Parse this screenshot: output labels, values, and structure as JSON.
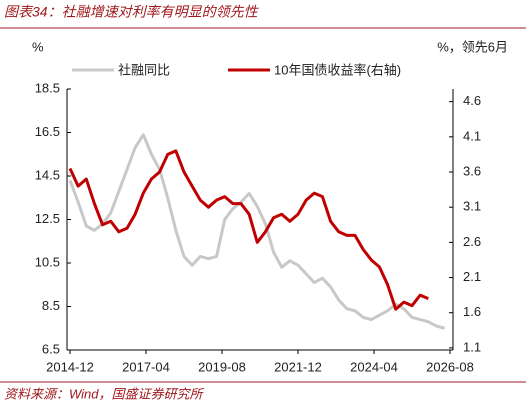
{
  "chart_data": {
    "type": "line",
    "title": "图表34：社融增速对利率有明显的领先性",
    "source": "资料来源：Wind，国盛证券研究所",
    "y_label": "%",
    "y2_label": "%，领先6月",
    "x": [
      "2014-12",
      "2015-03",
      "2015-06",
      "2015-09",
      "2015-12",
      "2016-03",
      "2016-06",
      "2016-09",
      "2016-12",
      "2017-03",
      "2017-06",
      "2017-09",
      "2017-12",
      "2018-03",
      "2018-06",
      "2018-09",
      "2018-12",
      "2019-03",
      "2019-06",
      "2019-09",
      "2019-12",
      "2020-03",
      "2020-06",
      "2020-09",
      "2020-12",
      "2021-03",
      "2021-06",
      "2021-09",
      "2021-12",
      "2022-03",
      "2022-06",
      "2022-09",
      "2022-12",
      "2023-03",
      "2023-06",
      "2023-09",
      "2023-12",
      "2024-03",
      "2024-06",
      "2024-09",
      "2024-12",
      "2025-03",
      "2025-06",
      "2025-09",
      "2025-12",
      "2026-03",
      "2026-06"
    ],
    "series": [
      {
        "name": "社融同比",
        "color": "#c8c8c8",
        "values": [
          14.3,
          13.3,
          12.2,
          12.0,
          12.3,
          12.8,
          13.8,
          14.8,
          15.8,
          16.4,
          15.5,
          14.8,
          13.5,
          12.0,
          10.8,
          10.4,
          10.8,
          10.7,
          10.8,
          12.5,
          13.0,
          13.3,
          13.7,
          13.1,
          12.3,
          11.0,
          10.3,
          10.6,
          10.4,
          10.0,
          9.6,
          9.8,
          9.4,
          8.8,
          8.4,
          8.3,
          8.0,
          7.9,
          8.1,
          8.3,
          8.6,
          8.4,
          8.0,
          7.9,
          7.8,
          7.6,
          7.5
        ]
      },
      {
        "name": "10年国债收益率(右轴)",
        "color": "#c00000",
        "axis": "y2",
        "values": [
          3.65,
          3.4,
          3.5,
          3.15,
          2.85,
          2.9,
          2.75,
          2.8,
          3.0,
          3.3,
          3.5,
          3.6,
          3.85,
          3.9,
          3.6,
          3.4,
          3.2,
          3.1,
          3.2,
          3.25,
          3.15,
          3.15,
          3.0,
          2.6,
          2.75,
          2.95,
          3.0,
          2.9,
          3.0,
          3.2,
          3.3,
          3.25,
          2.9,
          2.75,
          2.7,
          2.7,
          2.5,
          2.35,
          2.25,
          2.0,
          1.65,
          1.75,
          1.7,
          1.85,
          1.8,
          null,
          null
        ]
      }
    ],
    "xlim": [
      "2014-12",
      "2026-08"
    ],
    "xticks": [
      "2014-12",
      "2017-04",
      "2019-08",
      "2021-12",
      "2024-04",
      "2026-08"
    ],
    "ylim": [
      6.5,
      18.5
    ],
    "yticks": [
      6.5,
      8.5,
      10.5,
      12.5,
      14.5,
      16.5,
      18.5
    ],
    "y2lim": [
      1.07,
      4.78
    ],
    "y2ticks": [
      1.1,
      1.6,
      2.1,
      2.6,
      3.1,
      3.6,
      4.1,
      4.6
    ]
  }
}
